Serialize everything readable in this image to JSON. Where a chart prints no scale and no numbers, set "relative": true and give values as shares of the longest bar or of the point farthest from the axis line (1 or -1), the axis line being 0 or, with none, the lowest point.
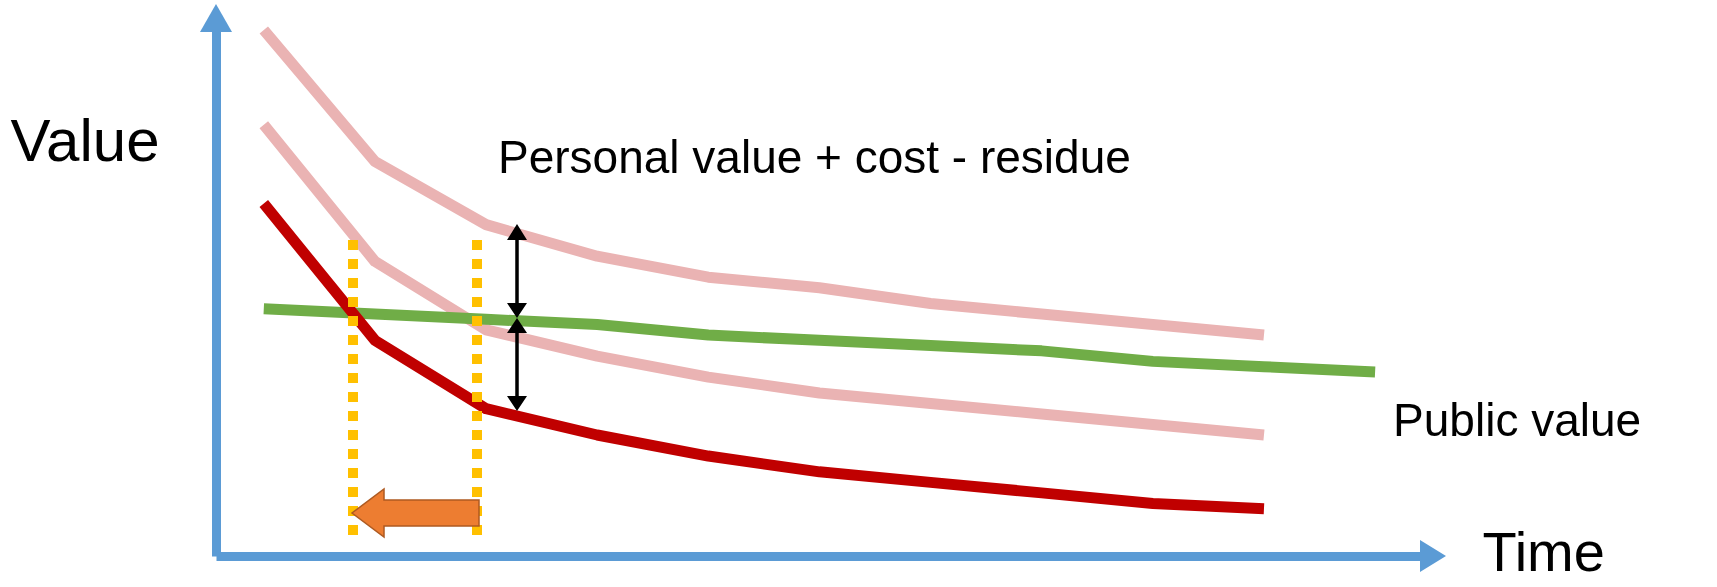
{
  "chart_data": {
    "type": "line",
    "relative": true,
    "xlabel": "Time",
    "ylabel": "Value",
    "categories": [
      null,
      null,
      null,
      null,
      null,
      null,
      null,
      null,
      null,
      null,
      null
    ],
    "series": [
      {
        "color": "#eab3b3",
        "values": [
          1.0,
          0.75,
          0.63,
          0.57,
          0.53,
          0.51,
          0.48,
          0.46,
          0.44,
          0.42,
          null
        ]
      },
      {
        "color": "#eab3b3",
        "values": [
          0.82,
          0.56,
          0.43,
          0.38,
          0.34,
          0.31,
          0.29,
          0.27,
          0.25,
          0.23,
          null
        ]
      },
      {
        "name": "Public value",
        "color": "#70ad47",
        "values": [
          0.47,
          0.46,
          0.45,
          0.44,
          0.42,
          0.41,
          0.4,
          0.39,
          0.37,
          0.36,
          0.35
        ]
      },
      {
        "color": "#c00000",
        "values": [
          0.67,
          0.41,
          0.28,
          0.23,
          0.19,
          0.16,
          0.14,
          0.12,
          0.1,
          0.09,
          null
        ]
      }
    ],
    "annotations": [
      "Personal value + cost - residue"
    ]
  }
}
